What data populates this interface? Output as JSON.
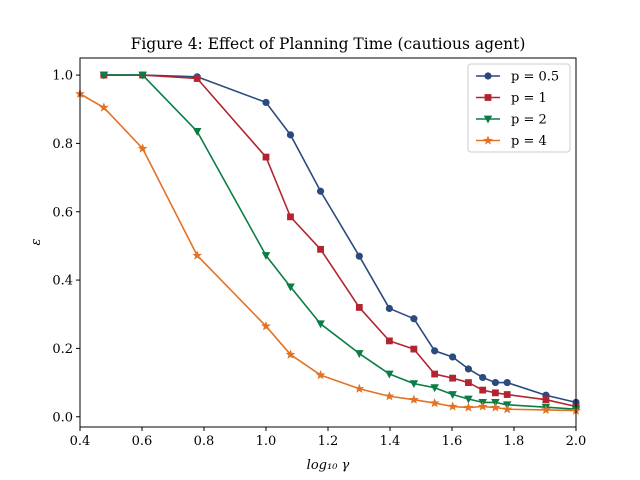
{
  "chart_data": {
    "type": "line",
    "title": "Figure 4: Effect of Planning Time (cautious agent)",
    "xlabel": "log₁₀ γ",
    "ylabel": "ε",
    "xlim": [
      0.4,
      2.0
    ],
    "ylim": [
      -0.03,
      1.05
    ],
    "xticks": [
      "0.4",
      "0.6",
      "0.8",
      "1.0",
      "1.2",
      "1.4",
      "1.6",
      "1.8",
      "2.0"
    ],
    "yticks": [
      "0.0",
      "0.2",
      "0.4",
      "0.6",
      "0.8",
      "1.0"
    ],
    "grid": false,
    "legend_position": "top-right",
    "series": [
      {
        "name": "p = 0.5",
        "color": "#2b4a7d",
        "marker": "circle",
        "x": [
          0.477,
          0.602,
          0.778,
          1.0,
          1.079,
          1.176,
          1.301,
          1.398,
          1.477,
          1.544,
          1.602,
          1.653,
          1.699,
          1.74,
          1.778,
          1.903,
          2.0
        ],
        "y": [
          1.0,
          1.0,
          0.995,
          0.92,
          0.825,
          0.66,
          0.47,
          0.317,
          0.287,
          0.193,
          0.175,
          0.14,
          0.115,
          0.1,
          0.1,
          0.063,
          0.042
        ]
      },
      {
        "name": "p = 1",
        "color": "#b22530",
        "marker": "square",
        "x": [
          0.477,
          0.602,
          0.778,
          1.0,
          1.079,
          1.176,
          1.301,
          1.398,
          1.477,
          1.544,
          1.602,
          1.653,
          1.699,
          1.74,
          1.778,
          1.903,
          2.0
        ],
        "y": [
          1.0,
          1.0,
          0.99,
          0.76,
          0.585,
          0.49,
          0.32,
          0.222,
          0.198,
          0.125,
          0.113,
          0.1,
          0.078,
          0.07,
          0.065,
          0.05,
          0.03
        ]
      },
      {
        "name": "p = 2",
        "color": "#0b7d45",
        "marker": "triangle-down",
        "x": [
          0.477,
          0.602,
          0.778,
          1.0,
          1.079,
          1.176,
          1.301,
          1.398,
          1.477,
          1.544,
          1.602,
          1.653,
          1.699,
          1.74,
          1.778,
          1.903,
          2.0
        ],
        "y": [
          1.0,
          1.0,
          0.835,
          0.472,
          0.38,
          0.272,
          0.185,
          0.125,
          0.097,
          0.085,
          0.065,
          0.052,
          0.042,
          0.042,
          0.035,
          0.028,
          0.022
        ]
      },
      {
        "name": "p = 4",
        "color": "#e27326",
        "marker": "star",
        "x": [
          0.4,
          0.477,
          0.602,
          0.778,
          1.0,
          1.079,
          1.176,
          1.301,
          1.398,
          1.477,
          1.544,
          1.602,
          1.653,
          1.699,
          1.74,
          1.778,
          1.903,
          2.0
        ],
        "y": [
          0.945,
          0.905,
          0.785,
          0.472,
          0.265,
          0.182,
          0.122,
          0.082,
          0.06,
          0.05,
          0.04,
          0.03,
          0.027,
          0.03,
          0.027,
          0.022,
          0.02,
          0.018
        ]
      }
    ]
  }
}
